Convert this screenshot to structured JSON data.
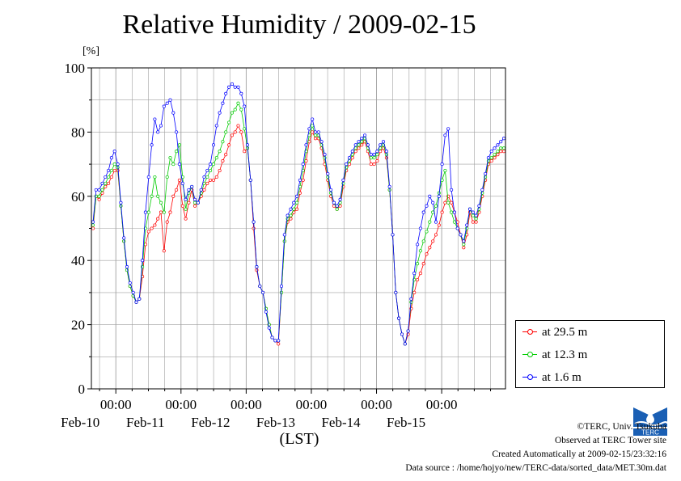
{
  "title": "Relative Humidity / 2009-02-15",
  "y_unit": "[%]",
  "x_unit": "(LST)",
  "colors": {
    "red": "#ff0000",
    "green": "#00cc00",
    "blue": "#0000ff",
    "grid": "#a0a0a0",
    "logo": "#1a5fb4"
  },
  "footer": {
    "copyright": "©TERC, Univ. Tsukuba",
    "observed": "Observed at TERC Tower site",
    "created": "Created Automatically at 2009-02-15/23:32:16",
    "source": "Data source : /home/hojyo/new/TERC-data/sorted_data/MET.30m.dat"
  },
  "logo_text": "TERC",
  "chart_data": {
    "type": "line",
    "title": "Relative Humidity / 2009-02-15",
    "ylabel": "[%]",
    "xlabel": "(LST)",
    "ylim": [
      0,
      100
    ],
    "yticks": [
      0,
      20,
      40,
      60,
      80,
      100
    ],
    "x_range_days": [
      "2009-02-09 15:00",
      "2009-02-15 23:30"
    ],
    "x_ticks": [
      {
        "time": "00:00",
        "date": "Feb-10"
      },
      {
        "time": "00:00",
        "date": "Feb-11"
      },
      {
        "time": "00:00",
        "date": "Feb-12"
      },
      {
        "time": "00:00",
        "date": "Feb-13"
      },
      {
        "time": "00:00",
        "date": "Feb-14"
      },
      {
        "time": "00:00",
        "date": "Feb-15"
      }
    ],
    "grid": true,
    "legend_position": "bottom-right",
    "series": [
      {
        "name": "at 29.5 m",
        "color": "#ff0000",
        "values": [
          50,
          60,
          59,
          61,
          63,
          64,
          66,
          68,
          68,
          57,
          46,
          37,
          32,
          29,
          27,
          28,
          35,
          45,
          49,
          50,
          51,
          53,
          55,
          43,
          52,
          55,
          60,
          62,
          65,
          57,
          53,
          58,
          62,
          57,
          58,
          60,
          62,
          64,
          65,
          65,
          66,
          68,
          71,
          73,
          76,
          79,
          80,
          82,
          80,
          74,
          75,
          65,
          50,
          37,
          32,
          30,
          25,
          20,
          16,
          15,
          14,
          30,
          46,
          52,
          53,
          55,
          56,
          61,
          65,
          71,
          77,
          80,
          78,
          78,
          75,
          70,
          65,
          60,
          57,
          56,
          57,
          63,
          68,
          70,
          72,
          74,
          75,
          76,
          77,
          74,
          70,
          70,
          71,
          74,
          75,
          72,
          62,
          48,
          30,
          22,
          17,
          14,
          17,
          25,
          30,
          34,
          36,
          39,
          42,
          44,
          46,
          48,
          51,
          55,
          58,
          60,
          58,
          55,
          52,
          48,
          44,
          48,
          55,
          52,
          52,
          55,
          60,
          65,
          70,
          71,
          72,
          73,
          74,
          74
        ]
      },
      {
        "name": "at 12.3 m",
        "color": "#00cc00",
        "values": [
          51,
          60,
          60,
          62,
          64,
          66,
          68,
          70,
          69,
          57,
          46,
          37,
          32,
          29,
          27,
          28,
          38,
          50,
          55,
          60,
          66,
          60,
          58,
          55,
          66,
          72,
          70,
          74,
          76,
          66,
          56,
          61,
          63,
          58,
          58,
          61,
          64,
          66,
          68,
          70,
          72,
          74,
          77,
          80,
          83,
          86,
          87,
          89,
          87,
          81,
          75,
          65,
          52,
          38,
          32,
          30,
          25,
          20,
          16,
          15,
          15,
          30,
          46,
          53,
          54,
          56,
          58,
          63,
          68,
          74,
          79,
          82,
          79,
          79,
          76,
          72,
          66,
          61,
          58,
          56,
          58,
          64,
          69,
          71,
          73,
          75,
          76,
          77,
          78,
          75,
          72,
          72,
          73,
          75,
          76,
          73,
          62,
          48,
          30,
          22,
          17,
          14,
          18,
          27,
          34,
          39,
          43,
          46,
          49,
          52,
          55,
          57,
          61,
          65,
          68,
          58,
          55,
          52,
          50,
          48,
          45,
          50,
          56,
          54,
          53,
          56,
          61,
          66,
          71,
          72,
          73,
          74,
          75,
          75
        ]
      },
      {
        "name": "at 1.6 m",
        "color": "#0000ff",
        "values": [
          52,
          62,
          62,
          64,
          66,
          68,
          72,
          74,
          70,
          58,
          47,
          38,
          33,
          30,
          27,
          28,
          40,
          55,
          66,
          76,
          84,
          80,
          82,
          88,
          89,
          90,
          86,
          80,
          70,
          64,
          59,
          62,
          63,
          59,
          58,
          62,
          66,
          68,
          70,
          76,
          82,
          86,
          89,
          92,
          94,
          95,
          94,
          94,
          92,
          88,
          76,
          65,
          52,
          38,
          32,
          30,
          24,
          19,
          16,
          15,
          15,
          32,
          48,
          54,
          56,
          58,
          60,
          65,
          70,
          76,
          81,
          84,
          80,
          80,
          77,
          73,
          67,
          62,
          58,
          57,
          59,
          65,
          70,
          72,
          74,
          76,
          77,
          78,
          79,
          76,
          73,
          73,
          74,
          76,
          77,
          74,
          63,
          48,
          30,
          22,
          17,
          14,
          18,
          28,
          36,
          45,
          50,
          55,
          57,
          60,
          58,
          52,
          60,
          70,
          79,
          81,
          62,
          55,
          50,
          48,
          46,
          51,
          56,
          55,
          54,
          57,
          62,
          67,
          72,
          74,
          75,
          76,
          77,
          78
        ]
      }
    ]
  }
}
